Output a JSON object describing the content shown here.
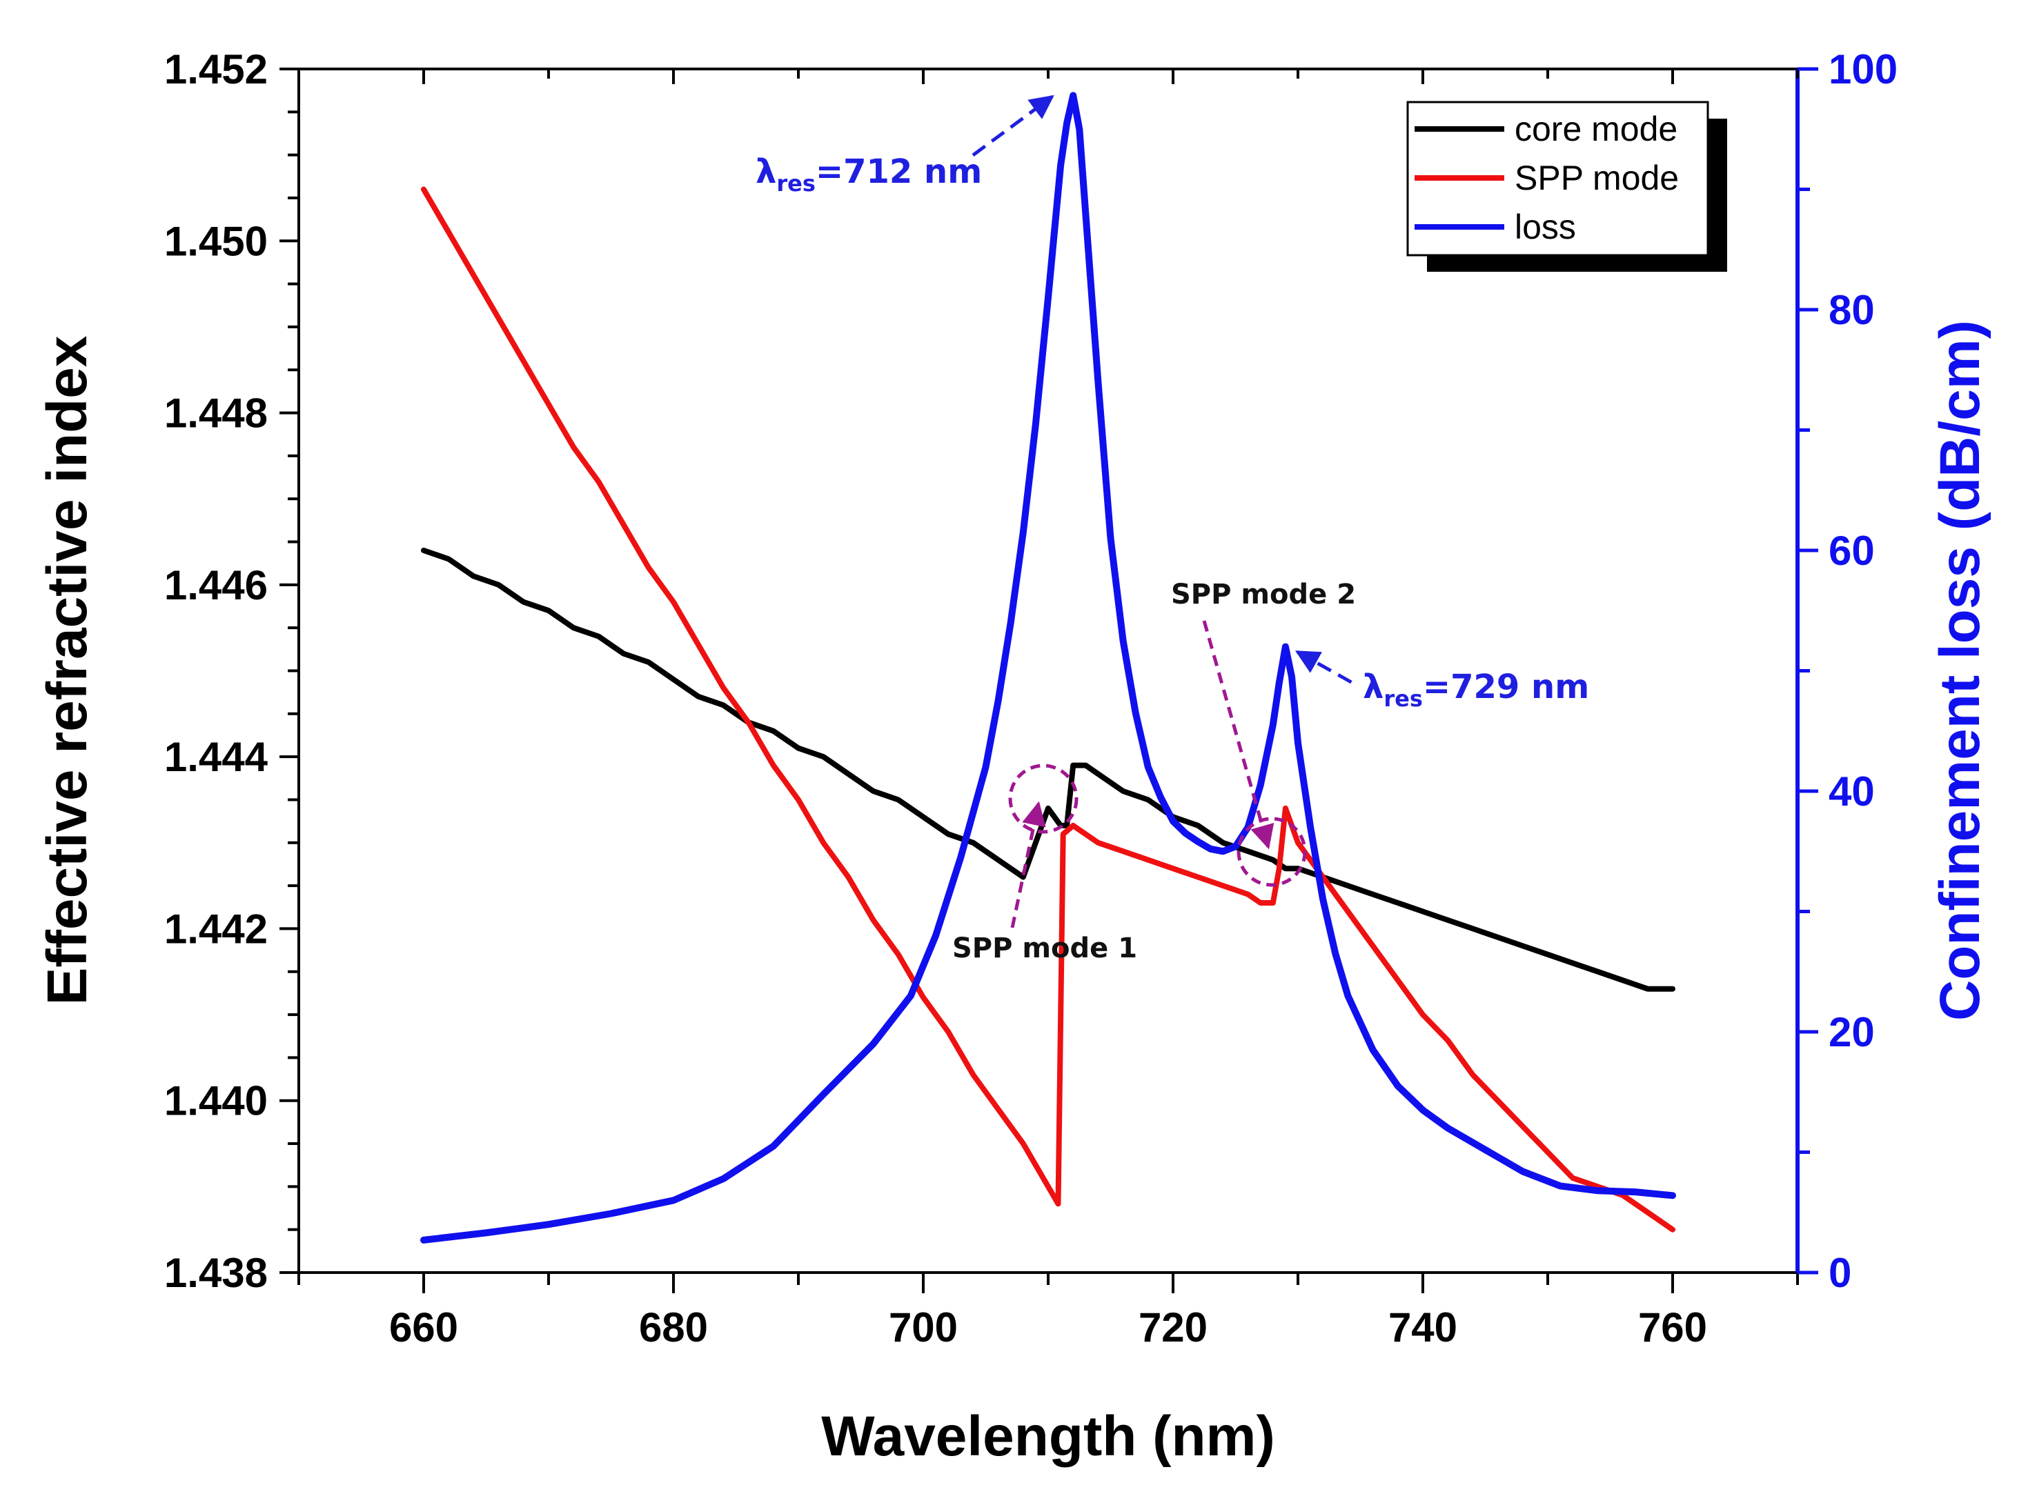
{
  "chart_data": {
    "type": "line",
    "xlabel": "Wavelength (nm)",
    "ylabel_left": "Effective refractive index",
    "ylabel_right": "Confinement loss (dB/cm)",
    "xlim": [
      650,
      770
    ],
    "ylim_left": [
      1.438,
      1.452
    ],
    "ylim_right": [
      0,
      100
    ],
    "x_ticks": [
      660,
      680,
      700,
      720,
      740,
      760
    ],
    "y_left_ticks": [
      "1.438",
      "1.440",
      "1.442",
      "1.444",
      "1.446",
      "1.448",
      "1.450",
      "1.452"
    ],
    "y_right_ticks": [
      0,
      20,
      40,
      60,
      80,
      100
    ],
    "grid": false,
    "legend_position": "top-right",
    "colors": {
      "core": "#000000",
      "spp": "#ee1111",
      "loss": "#1010ee",
      "annotation": "#a01890",
      "right_axis": "#1010ee"
    },
    "series": [
      {
        "name": "core mode",
        "axis": "left",
        "x": [
          660,
          662,
          664,
          666,
          668,
          670,
          672,
          674,
          676,
          678,
          680,
          682,
          684,
          686,
          688,
          690,
          692,
          694,
          696,
          698,
          700,
          702,
          704,
          706,
          708,
          710,
          711,
          711.5,
          712,
          713,
          714,
          716,
          718,
          720,
          722,
          724,
          726,
          728,
          729,
          730,
          732,
          734,
          736,
          738,
          740,
          742,
          744,
          746,
          748,
          750,
          752,
          754,
          756,
          758,
          760
        ],
        "values": [
          1.4464,
          1.4463,
          1.4461,
          1.446,
          1.4458,
          1.4457,
          1.4455,
          1.4454,
          1.4452,
          1.4451,
          1.4449,
          1.4447,
          1.4446,
          1.4444,
          1.4443,
          1.4441,
          1.444,
          1.4438,
          1.4436,
          1.4435,
          1.4433,
          1.4431,
          1.443,
          1.4428,
          1.4426,
          1.4434,
          1.4432,
          1.4432,
          1.4439,
          1.4439,
          1.4438,
          1.4436,
          1.4435,
          1.4433,
          1.4432,
          1.443,
          1.4429,
          1.4428,
          1.4427,
          1.4427,
          1.4426,
          1.4425,
          1.4424,
          1.4423,
          1.4422,
          1.4421,
          1.442,
          1.4419,
          1.4418,
          1.4417,
          1.4416,
          1.4415,
          1.4414,
          1.4413,
          1.4413
        ]
      },
      {
        "name": "SPP mode",
        "axis": "left",
        "x": [
          660,
          662,
          664,
          666,
          668,
          670,
          672,
          674,
          676,
          678,
          680,
          682,
          684,
          686,
          688,
          690,
          692,
          694,
          696,
          698,
          700,
          702,
          704,
          706,
          708,
          710,
          710.8,
          711.2,
          712,
          714,
          716,
          718,
          720,
          722,
          724,
          726,
          727,
          728,
          728.5,
          729,
          729.5,
          730,
          732,
          734,
          736,
          738,
          740,
          742,
          744,
          746,
          748,
          750,
          752,
          754,
          756,
          758,
          760
        ],
        "values": [
          1.4506,
          1.4501,
          1.4496,
          1.4491,
          1.4486,
          1.4481,
          1.4476,
          1.4472,
          1.4467,
          1.4462,
          1.4458,
          1.4453,
          1.4448,
          1.4444,
          1.4439,
          1.4435,
          1.443,
          1.4426,
          1.4421,
          1.4417,
          1.4412,
          1.4408,
          1.4403,
          1.4399,
          1.4395,
          1.439,
          1.4388,
          1.4431,
          1.4432,
          1.443,
          1.4429,
          1.4428,
          1.4427,
          1.4426,
          1.4425,
          1.4424,
          1.4423,
          1.4423,
          1.4427,
          1.4434,
          1.4432,
          1.443,
          1.4426,
          1.4422,
          1.4418,
          1.4414,
          1.441,
          1.4407,
          1.4403,
          1.44,
          1.4397,
          1.4394,
          1.4391,
          1.439,
          1.4389,
          1.4387,
          1.4385
        ]
      },
      {
        "name": "loss",
        "axis": "right",
        "x": [
          660,
          665,
          670,
          675,
          680,
          684,
          688,
          692,
          696,
          699,
          701,
          703,
          705,
          706,
          707,
          708,
          709,
          710,
          711,
          711.5,
          712,
          712.5,
          713,
          714,
          715,
          716,
          717,
          718,
          719,
          720,
          721,
          722,
          723,
          724,
          725,
          726,
          727,
          728,
          728.5,
          729,
          729.5,
          730,
          731,
          732,
          733,
          734,
          736,
          738,
          740,
          742,
          745,
          748,
          751,
          754,
          757,
          760
        ],
        "values": [
          2.7,
          3.3,
          4.0,
          4.9,
          6.0,
          7.8,
          10.5,
          14.8,
          19.0,
          23.0,
          28.0,
          34.5,
          42.0,
          47.5,
          54.0,
          61.5,
          70.5,
          81.0,
          92.0,
          95.5,
          97.8,
          95.0,
          88.0,
          74.0,
          61.0,
          52.5,
          46.5,
          42.0,
          39.5,
          37.5,
          36.5,
          35.8,
          35.2,
          35.0,
          35.4,
          37.0,
          40.5,
          45.5,
          49.0,
          52.0,
          49.5,
          44.0,
          37.0,
          31.0,
          26.5,
          23.0,
          18.5,
          15.5,
          13.5,
          12.0,
          10.2,
          8.4,
          7.2,
          6.8,
          6.7,
          6.4
        ]
      }
    ],
    "annotations": [
      {
        "type": "text",
        "base": "λ",
        "sub": "res",
        "text": "=712 nm",
        "x": 712,
        "y_right": 97.8
      },
      {
        "type": "text",
        "base": "λ",
        "sub": "res",
        "text": "=729 nm",
        "x": 729,
        "y_right": 52
      },
      {
        "type": "text",
        "text": "SPP mode 1",
        "x": 710,
        "y_left": 1.4434
      },
      {
        "type": "text",
        "text": "SPP mode 2",
        "x": 729,
        "y_left": 1.4428
      }
    ]
  }
}
